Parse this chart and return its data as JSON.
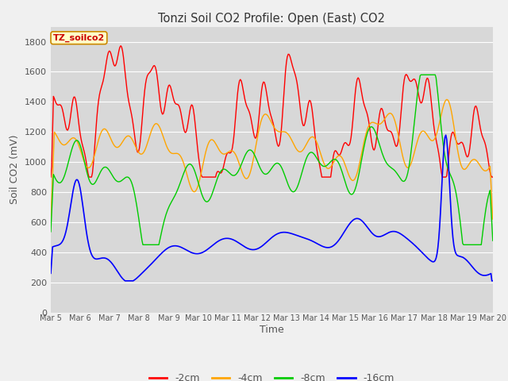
{
  "title": "Tonzi Soil CO2 Profile: Open (East) CO2",
  "ylabel": "Soil CO2 (mV)",
  "xlabel": "Time",
  "legend_label": "TZ_soilco2",
  "ylim": [
    0,
    1900
  ],
  "yticks": [
    0,
    200,
    400,
    600,
    800,
    1000,
    1200,
    1400,
    1600,
    1800
  ],
  "x_labels": [
    "Mar 5",
    "Mar 6",
    "Mar 7",
    "Mar 8",
    "Mar 9",
    "Mar 10",
    "Mar 11",
    "Mar 12",
    "Mar 13",
    "Mar 14",
    "Mar 15",
    "Mar 16",
    "Mar 17",
    "Mar 18",
    "Mar 19",
    "Mar 20"
  ],
  "colors": {
    "-2cm": "#ff0000",
    "-4cm": "#ffa500",
    "-8cm": "#00cc00",
    "-16cm": "#0000ff"
  },
  "series_labels": [
    "-2cm",
    "-4cm",
    "-8cm",
    "-16cm"
  ],
  "fig_bg": "#f0f0f0",
  "plot_bg": "#d8d8d8",
  "grid_color": "#ffffff",
  "title_color": "#333333",
  "label_color": "#555555"
}
